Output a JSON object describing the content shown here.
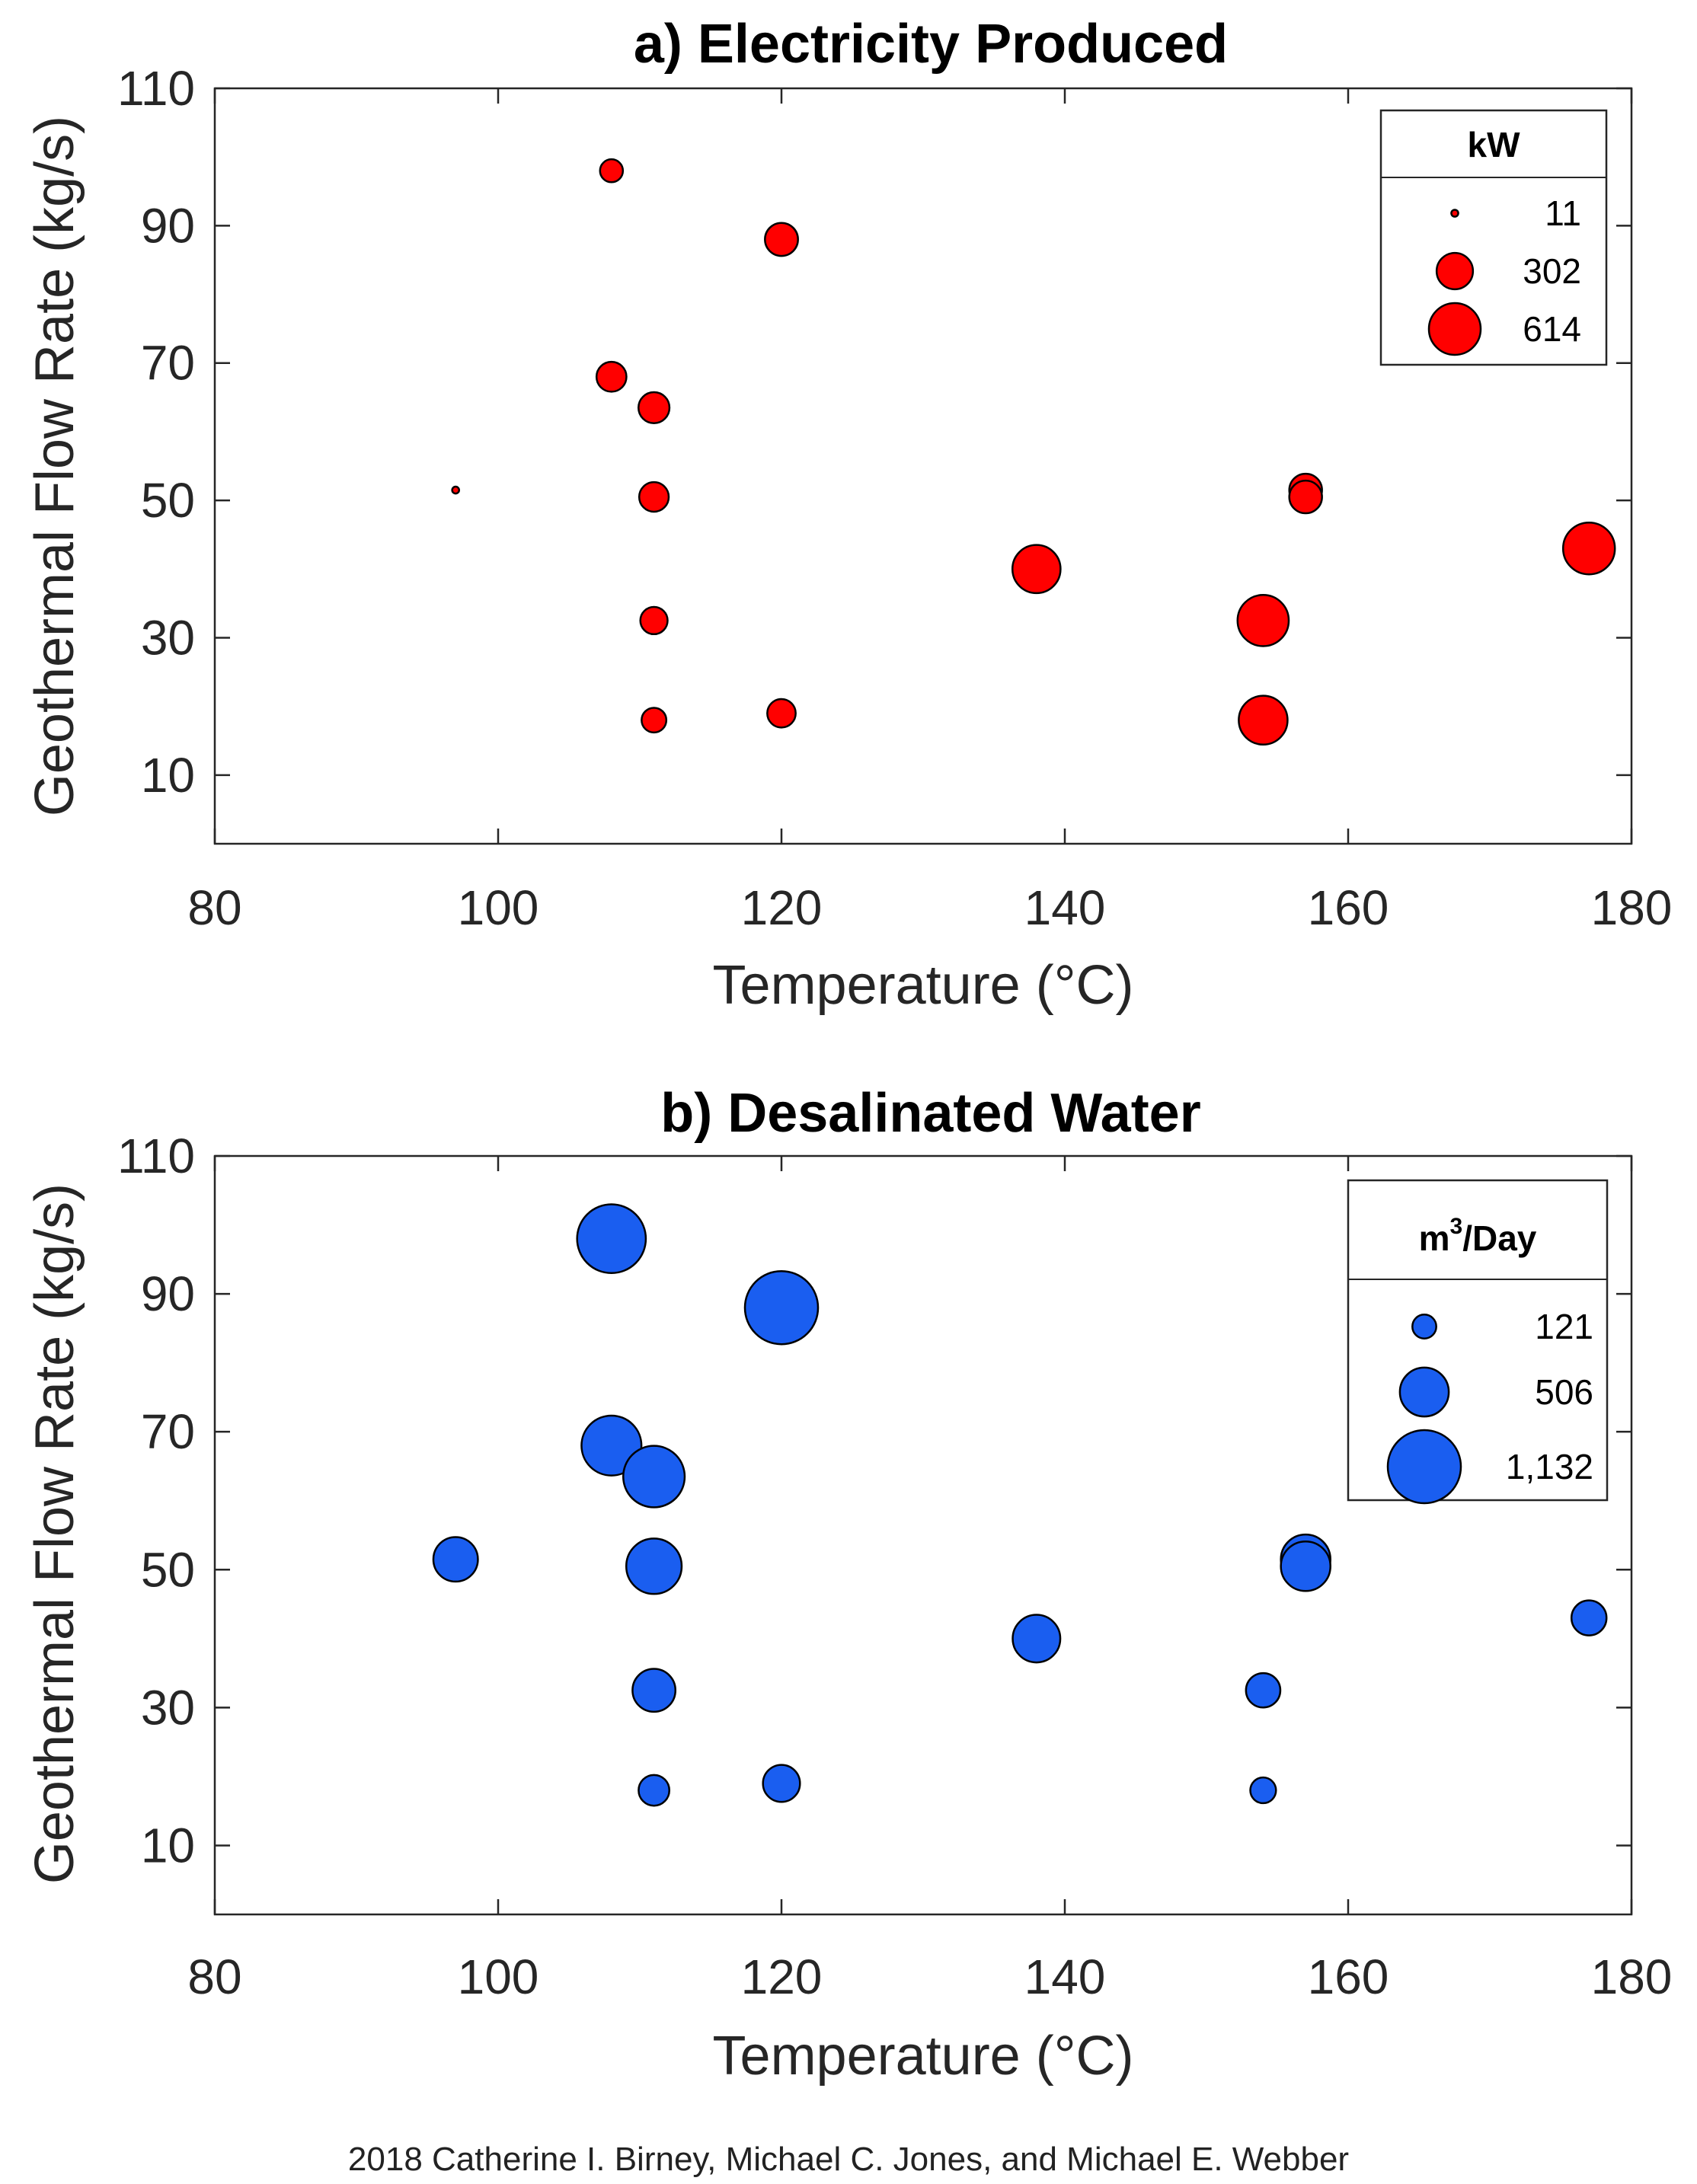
{
  "chart_data": [
    {
      "type": "scatter",
      "title": "a) Electricity Produced",
      "xlabel": "Temperature (°C)",
      "ylabel": "Geothermal Flow Rate (kg/s)",
      "xlim": [
        80,
        180
      ],
      "ylim": [
        0,
        110
      ],
      "xticks": [
        80,
        100,
        120,
        140,
        160,
        180
      ],
      "yticks": [
        10,
        30,
        50,
        70,
        90,
        110
      ],
      "color": "#ff0000",
      "legend": {
        "title": "kW",
        "entries": [
          {
            "label": "11",
            "value": 11
          },
          {
            "label": "302",
            "value": 302
          },
          {
            "label": "614",
            "value": 614
          }
        ]
      },
      "points": [
        {
          "x": 97,
          "y": 51.5,
          "size": 11
        },
        {
          "x": 108,
          "y": 98,
          "size": 120
        },
        {
          "x": 108,
          "y": 68,
          "size": 205
        },
        {
          "x": 111,
          "y": 63.5,
          "size": 220
        },
        {
          "x": 111,
          "y": 50.5,
          "size": 200
        },
        {
          "x": 111,
          "y": 32.5,
          "size": 170
        },
        {
          "x": 111,
          "y": 18,
          "size": 140
        },
        {
          "x": 120,
          "y": 88,
          "size": 250
        },
        {
          "x": 120,
          "y": 19,
          "size": 185
        },
        {
          "x": 138,
          "y": 40,
          "size": 530
        },
        {
          "x": 154,
          "y": 32.5,
          "size": 600
        },
        {
          "x": 154,
          "y": 18,
          "size": 545
        },
        {
          "x": 157,
          "y": 51.5,
          "size": 245
        },
        {
          "x": 157,
          "y": 50.5,
          "size": 245
        },
        {
          "x": 177,
          "y": 43,
          "size": 614
        }
      ]
    },
    {
      "type": "scatter",
      "title": "b) Desalinated Water",
      "xlabel": "Temperature (°C)",
      "ylabel": "Geothermal Flow Rate (kg/s)",
      "xlim": [
        80,
        180
      ],
      "ylim": [
        0,
        110
      ],
      "xticks": [
        80,
        100,
        120,
        140,
        160,
        180
      ],
      "yticks": [
        10,
        30,
        50,
        70,
        90,
        110
      ],
      "color": "#1a5ef0",
      "legend": {
        "title_main": "m",
        "title_sup": "3",
        "title_rest": "/Day",
        "entries": [
          {
            "label": "121",
            "value": 121
          },
          {
            "label": "506",
            "value": 506
          },
          {
            "label": "1,132",
            "value": 1132
          }
        ]
      },
      "points": [
        {
          "x": 97,
          "y": 51.5,
          "size": 420
        },
        {
          "x": 108,
          "y": 98,
          "size": 1000
        },
        {
          "x": 108,
          "y": 68,
          "size": 760
        },
        {
          "x": 111,
          "y": 63.5,
          "size": 800
        },
        {
          "x": 111,
          "y": 50.5,
          "size": 650
        },
        {
          "x": 111,
          "y": 32.5,
          "size": 390
        },
        {
          "x": 111,
          "y": 18,
          "size": 200
        },
        {
          "x": 120,
          "y": 88,
          "size": 1132
        },
        {
          "x": 120,
          "y": 19,
          "size": 290
        },
        {
          "x": 138,
          "y": 40,
          "size": 480
        },
        {
          "x": 154,
          "y": 32.5,
          "size": 250
        },
        {
          "x": 154,
          "y": 18,
          "size": 140
        },
        {
          "x": 157,
          "y": 51.5,
          "size": 520
        },
        {
          "x": 157,
          "y": 50.5,
          "size": 520
        },
        {
          "x": 177,
          "y": 43,
          "size": 260
        }
      ]
    }
  ],
  "credit": "2018 Catherine I. Birney, Michael C. Jones, and Michael E. Webber"
}
